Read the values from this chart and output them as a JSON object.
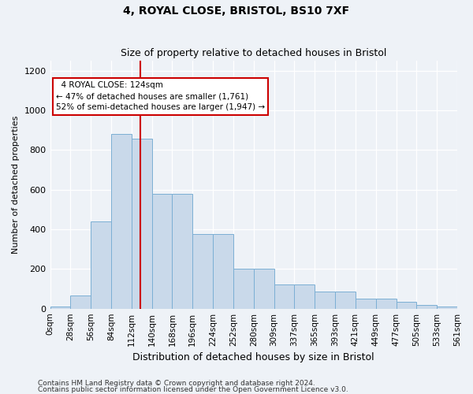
{
  "title1": "4, ROYAL CLOSE, BRISTOL, BS10 7XF",
  "title2": "Size of property relative to detached houses in Bristol",
  "xlabel": "Distribution of detached houses by size in Bristol",
  "ylabel": "Number of detached properties",
  "bar_color": "#c9d9ea",
  "bar_edge_color": "#7bafd4",
  "bar_heights": [
    10,
    65,
    440,
    880,
    855,
    580,
    580,
    375,
    375,
    200,
    200,
    120,
    120,
    85,
    85,
    50,
    50,
    35,
    18,
    10
  ],
  "bin_labels": [
    "0sqm",
    "28sqm",
    "56sqm",
    "84sqm",
    "112sqm",
    "140sqm",
    "168sqm",
    "196sqm",
    "224sqm",
    "252sqm",
    "280sqm",
    "309sqm",
    "337sqm",
    "365sqm",
    "393sqm",
    "421sqm",
    "449sqm",
    "477sqm",
    "505sqm",
    "533sqm",
    "561sqm"
  ],
  "ylim_min": 0,
  "ylim_max": 1250,
  "yticks": [
    0,
    200,
    400,
    600,
    800,
    1000,
    1200
  ],
  "vline_color": "#cc0000",
  "annotation_text": "  4 ROYAL CLOSE: 124sqm\n← 47% of detached houses are smaller (1,761)\n52% of semi-detached houses are larger (1,947) →",
  "annotation_box_color": "#ffffff",
  "annotation_box_edge": "#cc0000",
  "footnote1": "Contains HM Land Registry data © Crown copyright and database right 2024.",
  "footnote2": "Contains public sector information licensed under the Open Government Licence v3.0.",
  "background_color": "#eef2f7",
  "plot_bg_color": "#eef2f7",
  "grid_color": "#ffffff",
  "title1_fontsize": 10,
  "title2_fontsize": 9,
  "ylabel_fontsize": 8,
  "xlabel_fontsize": 9,
  "tick_fontsize": 7.5,
  "ytick_fontsize": 8,
  "footnote_fontsize": 6.5
}
